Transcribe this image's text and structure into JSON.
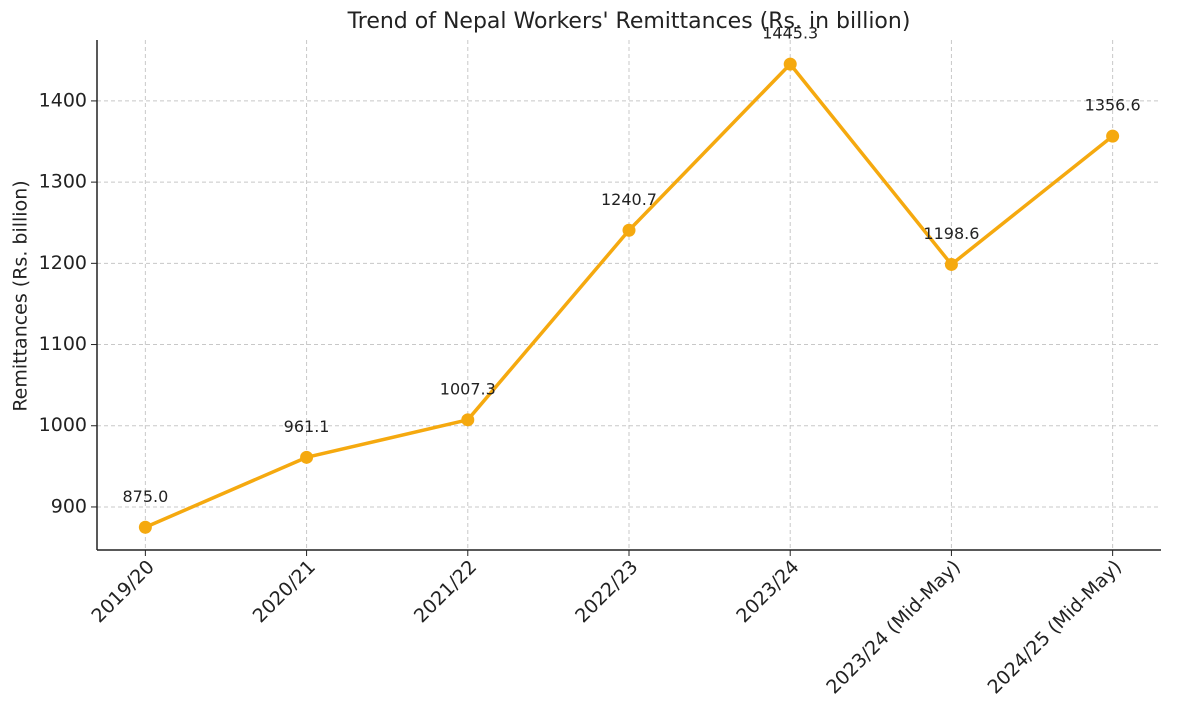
{
  "chart_data": {
    "type": "line",
    "title": "Trend of Nepal Workers' Remittances (Rs. in billion)",
    "y_label": "Remittances (Rs. billion)",
    "categories": [
      "2019/20",
      "2020/21",
      "2021/22",
      "2022/23",
      "2023/24",
      "2023/24 (Mid-May)",
      "2024/25 (Mid-May)"
    ],
    "values": [
      875.0,
      961.1,
      1007.3,
      1240.7,
      1445.3,
      1198.6,
      1356.6
    ],
    "value_labels": [
      "875.0",
      "961.1",
      "1007.3",
      "1240.7",
      "1445.3",
      "1198.6",
      "1356.6"
    ],
    "color": "#f5a90f",
    "ylim": [
      847,
      1475
    ],
    "yticks": [
      900,
      1000,
      1100,
      1200,
      1300,
      1400
    ],
    "grid": true
  }
}
